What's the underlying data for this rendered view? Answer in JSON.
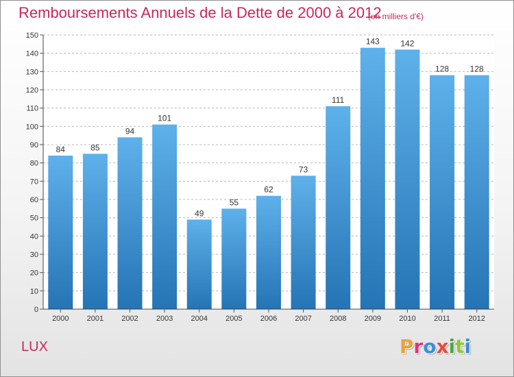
{
  "header": {
    "title": "Remboursements Annuels de la Dette de 2000 à 2012",
    "unit": "(en milliers d'€)"
  },
  "footer": {
    "commune": "LUX",
    "logo_text": "Proxiti"
  },
  "colors": {
    "title": "#c8285a",
    "bar_top": "#5eb1ea",
    "bar_bottom": "#2574b5",
    "logo_letters": [
      "#e8a33a",
      "#d73a7a",
      "#3e8fd6",
      "#e84b3c",
      "#4aa84a",
      "#8fc83c",
      "#3e8fd6"
    ]
  },
  "chart_data": {
    "type": "bar",
    "categories": [
      "2000",
      "2001",
      "2002",
      "2003",
      "2004",
      "2005",
      "2006",
      "2007",
      "2008",
      "2009",
      "2010",
      "2011",
      "2012"
    ],
    "values": [
      84,
      85,
      94,
      101,
      49,
      55,
      62,
      73,
      111,
      143,
      142,
      128,
      128
    ],
    "ylim": [
      0,
      150
    ],
    "yticks": [
      0,
      10,
      20,
      30,
      40,
      50,
      60,
      70,
      80,
      90,
      100,
      110,
      120,
      130,
      140,
      150
    ],
    "grid": "horizontal dashed",
    "xlabel": "",
    "ylabel": ""
  }
}
